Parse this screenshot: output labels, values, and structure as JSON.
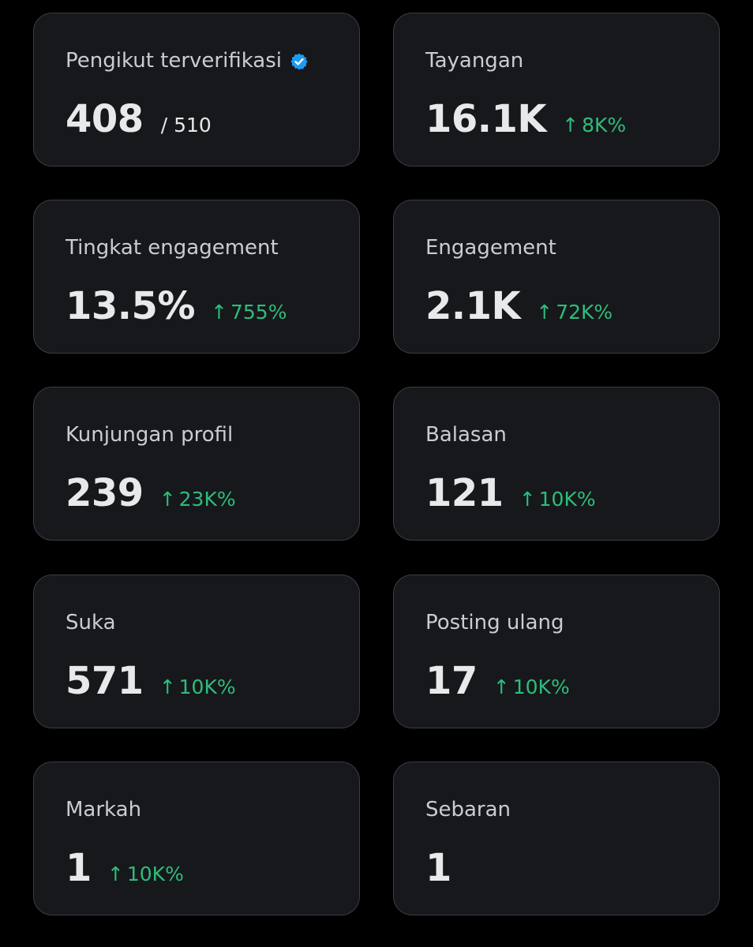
{
  "metrics": [
    {
      "label": "Pengikut terverifikasi",
      "value": "408",
      "total": "/ 510",
      "verified": true
    },
    {
      "label": "Tayangan",
      "value": "16.1K",
      "change": "8K%"
    },
    {
      "label": "Tingkat engagement",
      "value": "13.5%",
      "change": "755%"
    },
    {
      "label": "Engagement",
      "value": "2.1K",
      "change": "72K%"
    },
    {
      "label": "Kunjungan profil",
      "value": "239",
      "change": "23K%"
    },
    {
      "label": "Balasan",
      "value": "121",
      "change": "10K%"
    },
    {
      "label": "Suka",
      "value": "571",
      "change": "10K%"
    },
    {
      "label": "Posting ulang",
      "value": "17",
      "change": "10K%"
    },
    {
      "label": "Markah",
      "value": "1",
      "change": "10K%"
    },
    {
      "label": "Sebaran",
      "value": "1"
    }
  ],
  "change_arrow": "↑",
  "icons": {
    "verified": "verified-badge-icon",
    "trend": "arrow-up-icon"
  },
  "colors": {
    "background": "#000000",
    "card": "#16181c",
    "card_border": "#3a3d42",
    "label": "#c9cdd2",
    "value": "#e7e9ea",
    "positive": "#2ebd7a",
    "verified": "#1d9bf0"
  }
}
